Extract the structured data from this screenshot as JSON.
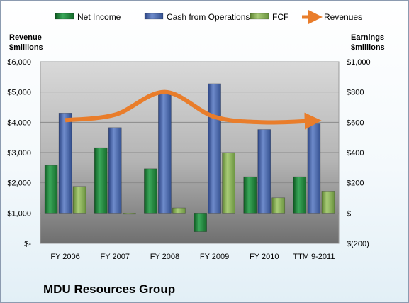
{
  "chart_data": {
    "type": "bar",
    "title": "MDU Resources Group",
    "categories": [
      "FY 2006",
      "FY 2007",
      "FY 2008",
      "FY 2009",
      "FY 2010",
      "TTM 9-2011"
    ],
    "left_axis": {
      "label_line1": "Revenue",
      "label_line2": "$millions",
      "ylim": [
        0,
        6000
      ],
      "ticks": [
        "$-",
        "$1,000",
        "$2,000",
        "$3,000",
        "$4,000",
        "$5,000",
        "$6,000"
      ]
    },
    "right_axis": {
      "label_line1": "Earnings",
      "label_line2": "$millions",
      "ylim": [
        -200,
        1000
      ],
      "ticks": [
        "$(200)",
        "$-",
        "$200",
        "$400",
        "$600",
        "$800",
        "$1,000"
      ]
    },
    "series": [
      {
        "name": "Net Income",
        "axis": "right",
        "type": "bar",
        "color": "#1f8a3c",
        "values": [
          315,
          432,
          293,
          -123,
          240,
          240
        ]
      },
      {
        "name": "Cash from Operations",
        "axis": "right",
        "type": "bar",
        "color": "#4a67b0",
        "values": [
          661,
          565,
          800,
          855,
          552,
          590
        ]
      },
      {
        "name": "FCF",
        "axis": "right",
        "type": "bar",
        "color": "#8bb457",
        "values": [
          176,
          -4,
          34,
          400,
          101,
          145
        ]
      },
      {
        "name": "Revenues",
        "axis": "left",
        "type": "line",
        "color": "#e97d2b",
        "values": [
          4070,
          4250,
          5000,
          4180,
          4000,
          4050
        ]
      }
    ],
    "legend_position": "top",
    "grid": true
  }
}
